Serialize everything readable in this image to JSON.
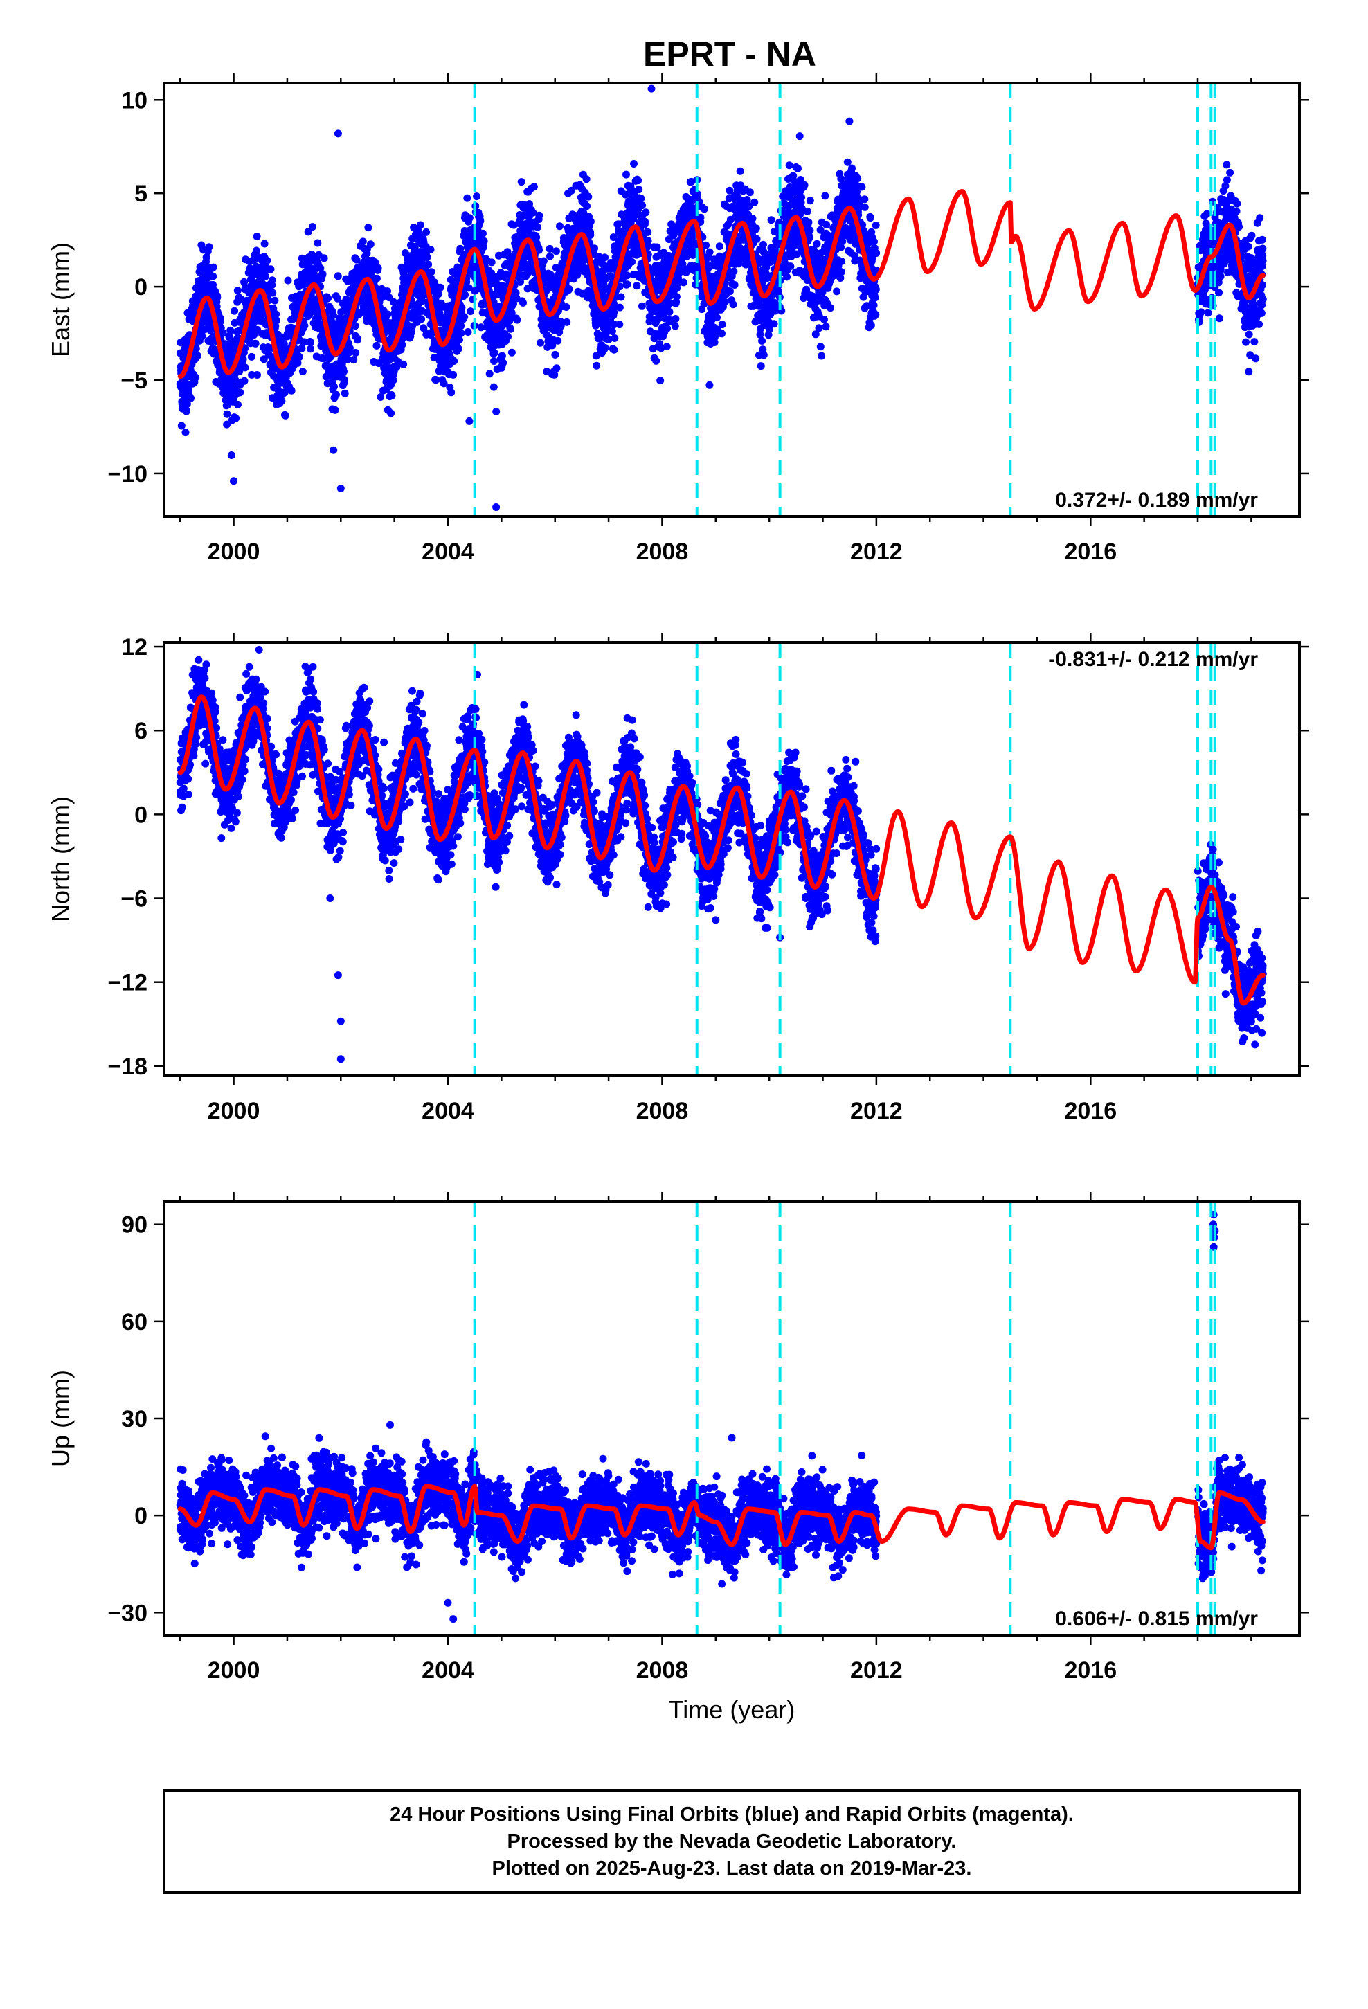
{
  "chart_data": {
    "type": "scatter",
    "title": "EPRT - NA",
    "xlabel": "Time (year)",
    "xlim": [
      1998.7,
      2019.9
    ],
    "x_ticks": [
      2000,
      2004,
      2008,
      2012,
      2016
    ],
    "x_tick_labels": [
      "2000",
      "2004",
      "2008",
      "2012",
      "2016"
    ],
    "data_start": 1999.0,
    "data_end": 2019.22,
    "data_gap": [
      2012.0,
      2018.0
    ],
    "event_lines": [
      2004.5,
      2008.65,
      2010.2,
      2014.5,
      2018.0,
      2018.25,
      2018.32
    ],
    "event_line_color": "#00e5ee",
    "data_color": "#0000ff",
    "model_color": "#ff0000",
    "panels": [
      {
        "name": "East",
        "ylabel": "East (mm)",
        "ylim": [
          -12.3,
          10.9
        ],
        "y_ticks": [
          10,
          5,
          0,
          -5,
          -10
        ],
        "y_tick_labels": [
          "10",
          "5",
          "0",
          "−5",
          "−10"
        ],
        "rate": "0.372+/- 0.189 mm/yr",
        "rate_position": "bottom-right",
        "offset": -4.6,
        "slope": 0.372,
        "amplitude": 1.9,
        "phase_year": 1999.5,
        "noise": 1.3,
        "model_keypoints": [
          [
            1999.0,
            -4.8
          ],
          [
            1999.5,
            -0.6
          ],
          [
            1999.9,
            -4.6
          ],
          [
            2000.5,
            -0.2
          ],
          [
            2000.9,
            -4.3
          ],
          [
            2001.5,
            0.1
          ],
          [
            2001.9,
            -3.6
          ],
          [
            2002.5,
            0.4
          ],
          [
            2002.9,
            -3.4
          ],
          [
            2003.5,
            0.8
          ],
          [
            2003.9,
            -3.1
          ],
          [
            2004.5,
            2.0
          ],
          [
            2004.9,
            -1.8
          ],
          [
            2005.5,
            2.5
          ],
          [
            2005.9,
            -1.5
          ],
          [
            2006.5,
            2.8
          ],
          [
            2006.9,
            -1.2
          ],
          [
            2007.5,
            3.2
          ],
          [
            2007.9,
            -0.8
          ],
          [
            2008.6,
            3.5
          ],
          [
            2008.9,
            -0.9
          ],
          [
            2009.5,
            3.4
          ],
          [
            2009.9,
            -0.5
          ],
          [
            2010.5,
            3.7
          ],
          [
            2010.9,
            0.0
          ],
          [
            2011.5,
            4.2
          ],
          [
            2011.95,
            0.4
          ],
          [
            2012.6,
            4.7
          ],
          [
            2012.95,
            0.8
          ],
          [
            2013.6,
            5.1
          ],
          [
            2013.95,
            1.2
          ],
          [
            2014.5,
            4.5
          ],
          [
            2014.52,
            2.4
          ],
          [
            2014.6,
            2.7
          ],
          [
            2014.95,
            -1.2
          ],
          [
            2015.6,
            3.0
          ],
          [
            2015.95,
            -0.8
          ],
          [
            2016.6,
            3.4
          ],
          [
            2016.95,
            -0.5
          ],
          [
            2017.6,
            3.8
          ],
          [
            2017.95,
            -0.2
          ],
          [
            2018.25,
            1.6
          ],
          [
            2018.6,
            3.3
          ],
          [
            2018.95,
            -0.6
          ],
          [
            2019.22,
            0.6
          ]
        ],
        "outliers": [
          [
            2001.95,
            8.2
          ],
          [
            2004.9,
            -11.8
          ],
          [
            2002.0,
            -10.8
          ],
          [
            2007.8,
            10.6
          ],
          [
            2004.4,
            -7.2
          ],
          [
            2000.0,
            -10.4
          ]
        ]
      },
      {
        "name": "North",
        "ylabel": "North (mm)",
        "ylim": [
          -18.7,
          12.3
        ],
        "y_ticks": [
          12,
          6,
          0,
          -6,
          -12,
          -18
        ],
        "y_tick_labels": [
          "12",
          "6",
          "0",
          "−6",
          "−12",
          "−18"
        ],
        "rate": "-0.831+/- 0.212 mm/yr",
        "rate_position": "top-right",
        "offset": 4.0,
        "slope": -0.831,
        "amplitude": 3.5,
        "phase_year": 1999.4,
        "noise": 1.4,
        "model_keypoints": [
          [
            1999.0,
            3.0
          ],
          [
            1999.4,
            8.4
          ],
          [
            1999.85,
            1.8
          ],
          [
            2000.4,
            7.6
          ],
          [
            2000.85,
            0.8
          ],
          [
            2001.4,
            6.6
          ],
          [
            2001.85,
            -0.2
          ],
          [
            2002.4,
            6.0
          ],
          [
            2002.85,
            -1.0
          ],
          [
            2003.4,
            5.4
          ],
          [
            2003.85,
            -1.8
          ],
          [
            2004.5,
            4.6
          ],
          [
            2004.85,
            -1.7
          ],
          [
            2005.4,
            4.4
          ],
          [
            2005.85,
            -2.4
          ],
          [
            2006.4,
            3.8
          ],
          [
            2006.85,
            -3.1
          ],
          [
            2007.4,
            3.0
          ],
          [
            2007.85,
            -4.0
          ],
          [
            2008.4,
            2.0
          ],
          [
            2008.85,
            -3.8
          ],
          [
            2009.4,
            1.9
          ],
          [
            2009.85,
            -4.5
          ],
          [
            2010.4,
            1.6
          ],
          [
            2010.85,
            -5.2
          ],
          [
            2011.4,
            1.0
          ],
          [
            2011.95,
            -6.0
          ],
          [
            2012.4,
            0.2
          ],
          [
            2012.85,
            -6.6
          ],
          [
            2013.4,
            -0.6
          ],
          [
            2013.85,
            -7.4
          ],
          [
            2014.5,
            -1.6
          ],
          [
            2014.85,
            -9.6
          ],
          [
            2015.4,
            -3.4
          ],
          [
            2015.85,
            -10.6
          ],
          [
            2016.4,
            -4.4
          ],
          [
            2016.85,
            -11.2
          ],
          [
            2017.4,
            -5.4
          ],
          [
            2017.95,
            -12.0
          ],
          [
            2018.0,
            -7.4
          ],
          [
            2018.25,
            -5.2
          ],
          [
            2018.6,
            -9.0
          ],
          [
            2018.85,
            -13.5
          ],
          [
            2019.22,
            -11.5
          ]
        ],
        "outliers": [
          [
            2002.0,
            -17.5
          ],
          [
            2002.0,
            -14.8
          ],
          [
            2001.95,
            -11.5
          ],
          [
            2001.8,
            -6.0
          ],
          [
            2004.55,
            10.0
          ],
          [
            2010.2,
            -8.8
          ]
        ]
      },
      {
        "name": "Up",
        "ylabel": "Up (mm)",
        "ylim": [
          -37,
          97
        ],
        "y_ticks": [
          90,
          60,
          30,
          0,
          -30
        ],
        "y_tick_labels": [
          "90",
          "60",
          "30",
          "0",
          "−30"
        ],
        "rate": "0.606+/- 0.815 mm/yr",
        "rate_position": "bottom-right",
        "offset": 2.0,
        "slope": 0.606,
        "amplitude": 5.0,
        "phase_year": 1999.55,
        "noise": 5.0,
        "model_keypoints": [
          [
            1999.0,
            2.0
          ],
          [
            1999.3,
            -3.0
          ],
          [
            1999.6,
            7.0
          ],
          [
            2000.0,
            5.0
          ],
          [
            2000.3,
            -2.0
          ],
          [
            2000.6,
            8.0
          ],
          [
            2001.1,
            6.0
          ],
          [
            2001.3,
            -3.0
          ],
          [
            2001.6,
            8.0
          ],
          [
            2002.1,
            6.0
          ],
          [
            2002.3,
            -4.0
          ],
          [
            2002.6,
            8.0
          ],
          [
            2003.1,
            6.0
          ],
          [
            2003.3,
            -5.0
          ],
          [
            2003.6,
            9.0
          ],
          [
            2004.1,
            7.0
          ],
          [
            2004.3,
            -3.0
          ],
          [
            2004.5,
            9.0
          ],
          [
            2004.55,
            1.0
          ],
          [
            2005.0,
            0.0
          ],
          [
            2005.3,
            -8.0
          ],
          [
            2005.6,
            3.0
          ],
          [
            2006.1,
            2.0
          ],
          [
            2006.3,
            -7.0
          ],
          [
            2006.6,
            3.0
          ],
          [
            2007.1,
            2.0
          ],
          [
            2007.3,
            -6.0
          ],
          [
            2007.6,
            3.0
          ],
          [
            2008.1,
            2.0
          ],
          [
            2008.3,
            -6.0
          ],
          [
            2008.6,
            4.0
          ],
          [
            2008.7,
            0.0
          ],
          [
            2009.0,
            -2.0
          ],
          [
            2009.3,
            -9.0
          ],
          [
            2009.6,
            2.0
          ],
          [
            2010.1,
            1.0
          ],
          [
            2010.3,
            -9.0
          ],
          [
            2010.6,
            1.0
          ],
          [
            2011.1,
            0.0
          ],
          [
            2011.3,
            -8.0
          ],
          [
            2011.6,
            1.0
          ],
          [
            2011.9,
            0.0
          ],
          [
            2012.1,
            -8.0
          ],
          [
            2012.6,
            2.0
          ],
          [
            2013.1,
            1.0
          ],
          [
            2013.3,
            -6.0
          ],
          [
            2013.6,
            3.0
          ],
          [
            2014.1,
            2.0
          ],
          [
            2014.3,
            -7.0
          ],
          [
            2014.6,
            4.0
          ],
          [
            2015.1,
            3.0
          ],
          [
            2015.3,
            -6.0
          ],
          [
            2015.6,
            4.0
          ],
          [
            2016.1,
            3.0
          ],
          [
            2016.3,
            -5.0
          ],
          [
            2016.6,
            5.0
          ],
          [
            2017.1,
            4.0
          ],
          [
            2017.3,
            -4.0
          ],
          [
            2017.6,
            5.0
          ],
          [
            2017.95,
            4.0
          ],
          [
            2018.05,
            -8.0
          ],
          [
            2018.25,
            -10.0
          ],
          [
            2018.4,
            7.0
          ],
          [
            2018.8,
            5.0
          ],
          [
            2019.22,
            -2.0
          ]
        ],
        "outliers": [
          [
            2018.3,
            93.0
          ],
          [
            2018.32,
            88.0
          ],
          [
            2018.3,
            83.0
          ],
          [
            2018.29,
            90.0
          ],
          [
            2018.31,
            86.0
          ],
          [
            2009.3,
            24.0
          ],
          [
            2004.0,
            -27.0
          ],
          [
            2004.1,
            -32.0
          ],
          [
            2018.1,
            -19.0
          ]
        ]
      }
    ],
    "caption_lines": [
      "24 Hour Positions Using Final Orbits (blue) and Rapid Orbits (magenta).",
      "Processed by the Nevada Geodetic Laboratory.",
      "Plotted on 2025-Aug-23. Last data on 2019-Mar-23."
    ]
  }
}
